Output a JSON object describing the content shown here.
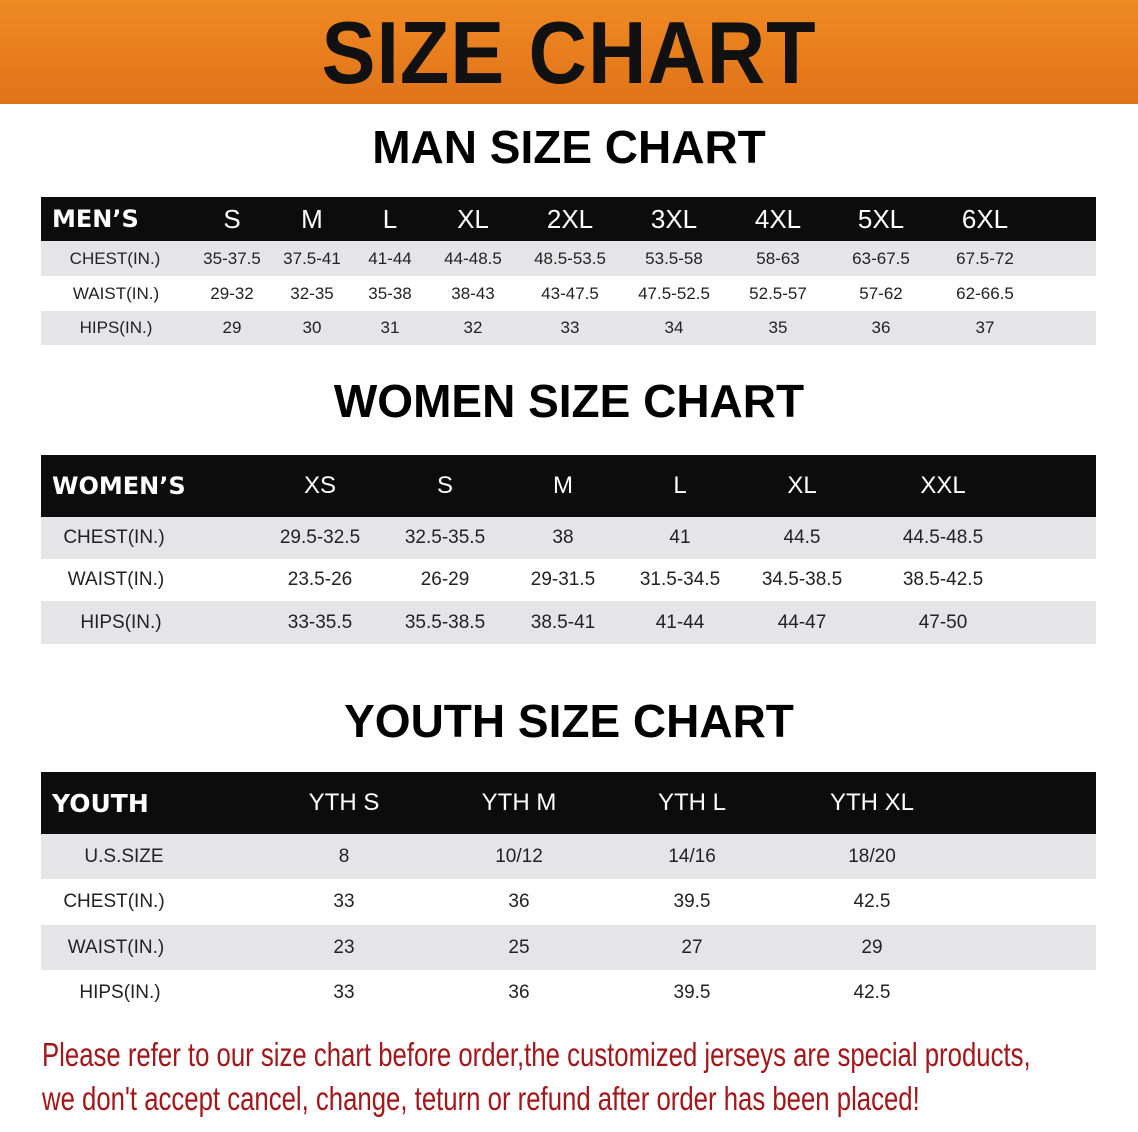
{
  "banner": {
    "title": "SIZE CHART",
    "color": "#e8801e"
  },
  "men": {
    "title": "MAN SIZE CHART",
    "header": [
      "MEN’S",
      "S",
      "M",
      "L",
      "XL",
      "2XL",
      "3XL",
      "4XL",
      "5XL",
      "6XL"
    ],
    "rows": [
      [
        "CHEST(IN.)",
        "35-37.5",
        "37.5-41",
        "41-44",
        "44-48.5",
        "48.5-53.5",
        "53.5-58",
        "58-63",
        "63-67.5",
        "67.5-72"
      ],
      [
        "WAIST(IN.)",
        "29-32",
        "32-35",
        "35-38",
        "38-43",
        "43-47.5",
        "47.5-52.5",
        "52.5-57",
        "57-62",
        "62-66.5"
      ],
      [
        "HIPS(IN.)",
        "29",
        "30",
        "31",
        "32",
        "33",
        "34",
        "35",
        "36",
        "37"
      ]
    ]
  },
  "women": {
    "title": "WOMEN SIZE CHART",
    "header": [
      "WOMEN’S",
      "XS",
      "S",
      "M",
      "L",
      "XL",
      "XXL"
    ],
    "rows": [
      [
        "CHEST(IN.)",
        "29.5-32.5",
        "32.5-35.5",
        "38",
        "41",
        "44.5",
        "44.5-48.5"
      ],
      [
        "WAIST(IN.)",
        "23.5-26",
        "26-29",
        "29-31.5",
        "31.5-34.5",
        "34.5-38.5",
        "38.5-42.5"
      ],
      [
        "HIPS(IN.)",
        "33-35.5",
        "35.5-38.5",
        "38.5-41",
        "41-44",
        "44-47",
        "47-50"
      ]
    ]
  },
  "youth": {
    "title": "YOUTH SIZE CHART",
    "header": [
      "YOUTH",
      "YTH S",
      "YTH M",
      "YTH L",
      "YTH XL"
    ],
    "rows": [
      [
        "U.S.SIZE",
        "8",
        "10/12",
        "14/16",
        "18/20"
      ],
      [
        "CHEST(IN.)",
        "33",
        "36",
        "39.5",
        "42.5"
      ],
      [
        "WAIST(IN.)",
        "23",
        "25",
        "27",
        "29"
      ],
      [
        "HIPS(IN.)",
        "33",
        "36",
        "39.5",
        "42.5"
      ]
    ]
  },
  "note": {
    "line1": "Please refer to our size chart before order,the customized jerseys are special products,",
    "line2": "we don't accept cancel, change, teturn or refund after order has been placed!",
    "color": "#a3161a"
  }
}
